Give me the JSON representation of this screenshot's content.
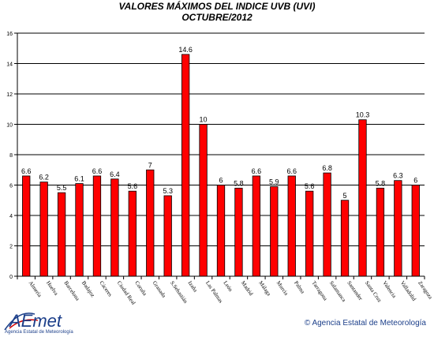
{
  "chart_data": {
    "type": "bar",
    "title": "VALORES MÁXIMOS DEL INDICE UVB (UVI)",
    "subtitle": "OCTUBRE/2012",
    "categories": [
      "Almería",
      "Huelva",
      "Barcelona",
      "Badajoz",
      "Cáceres",
      "Ciudad Real",
      "Coruña",
      "Granada",
      "S.Sebastián",
      "Izaña",
      "Las Palmas",
      "León",
      "Madrid",
      "Málaga",
      "Murcia",
      "Palma",
      "Tarragona",
      "Salamanca",
      "Santander",
      "Santa Cruz",
      "Valencia",
      "Valladolid",
      "Zaragoza"
    ],
    "values": [
      6.6,
      6.2,
      5.5,
      6.1,
      6.6,
      6.4,
      5.6,
      7,
      5.3,
      14.6,
      10,
      6,
      5.8,
      6.6,
      5.9,
      6.6,
      5.6,
      6.8,
      5,
      10.3,
      5.8,
      6.3,
      6
    ],
    "value_labels": [
      "6.6",
      "6.2",
      "5.5",
      "6.1",
      "6.6",
      "6.4",
      "5.6",
      "7",
      "5.3",
      "14.6",
      "10",
      "6",
      "5.8",
      "6.6",
      "5.9",
      "6.6",
      "5.6",
      "6.8",
      "5",
      "10.3",
      "5.8",
      "6.3",
      "6"
    ],
    "ylim": [
      0,
      16
    ],
    "yticks": [
      "0",
      "2",
      "4",
      "6",
      "8",
      "10",
      "12",
      "14",
      "16"
    ],
    "grid": true,
    "legend": "none",
    "bar_color": "#ff0000",
    "xlabel": "",
    "ylabel": ""
  },
  "logo": {
    "text": "AEmet",
    "caption": "Agencia Estatal de Meteorología"
  },
  "copyright": "© Agencia Estatal de Meteorología"
}
